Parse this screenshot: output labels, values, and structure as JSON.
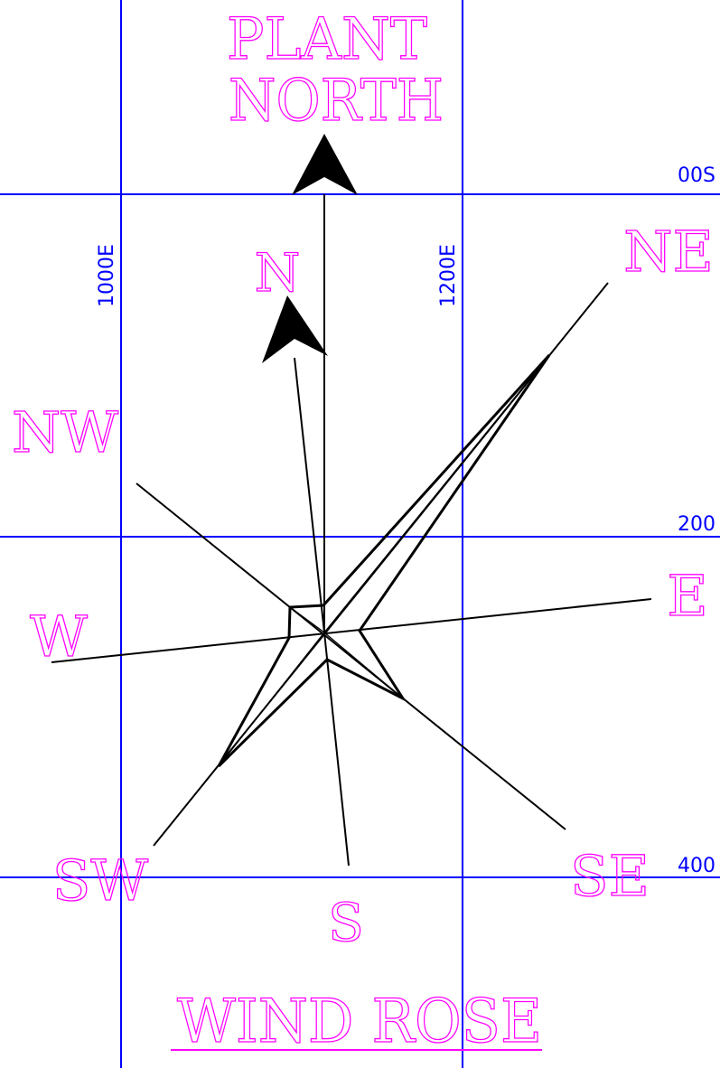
{
  "plant_north": {
    "line1": "PLANT",
    "line2": "NORTH"
  },
  "true_north": "N",
  "directions": {
    "ne": "NE",
    "nw": "NW",
    "e": "E",
    "w": "W",
    "se": "SE",
    "sw": "SW",
    "s": "S"
  },
  "grid": {
    "easting_1": "1000E",
    "easting_2": "1200E",
    "northing_1": "00S",
    "northing_2": "200",
    "northing_3": "400"
  },
  "title": "WIND ROSE",
  "colors": {
    "grid": "#0000ff",
    "labels": "#ff00ff",
    "linework": "#000000"
  }
}
